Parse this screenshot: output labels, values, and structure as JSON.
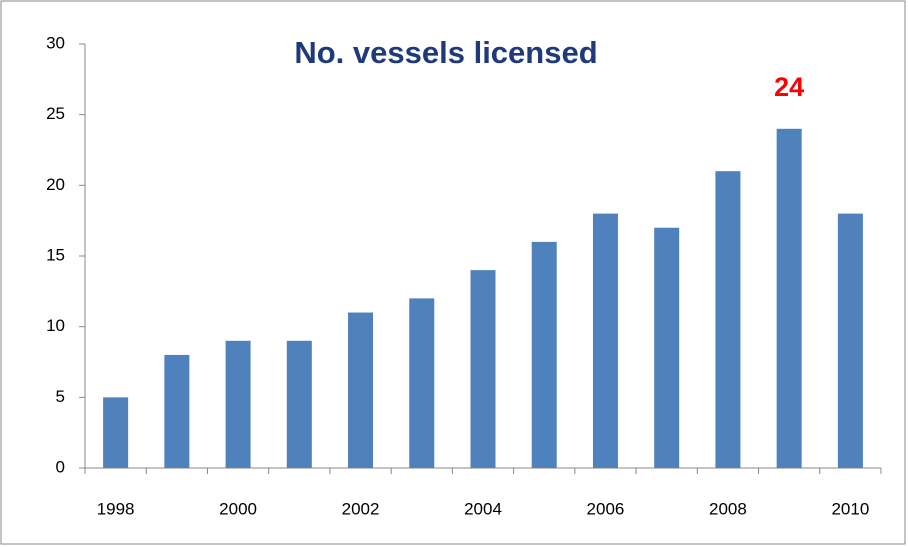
{
  "chart_data": {
    "type": "bar",
    "title": "No. vessels licensed",
    "categories": [
      "1998",
      null,
      "2000",
      null,
      "2002",
      null,
      "2004",
      null,
      "2006",
      null,
      "2008",
      null,
      "2010"
    ],
    "values": [
      5,
      8,
      9,
      9,
      11,
      12,
      14,
      16,
      18,
      17,
      21,
      24,
      18
    ],
    "color": "#4f81bd",
    "ylim": [
      0,
      30
    ],
    "yticks": [
      0,
      5,
      10,
      15,
      20,
      25,
      30
    ],
    "grid": false,
    "highlight": {
      "index": 11,
      "color": "#ff0000"
    }
  }
}
